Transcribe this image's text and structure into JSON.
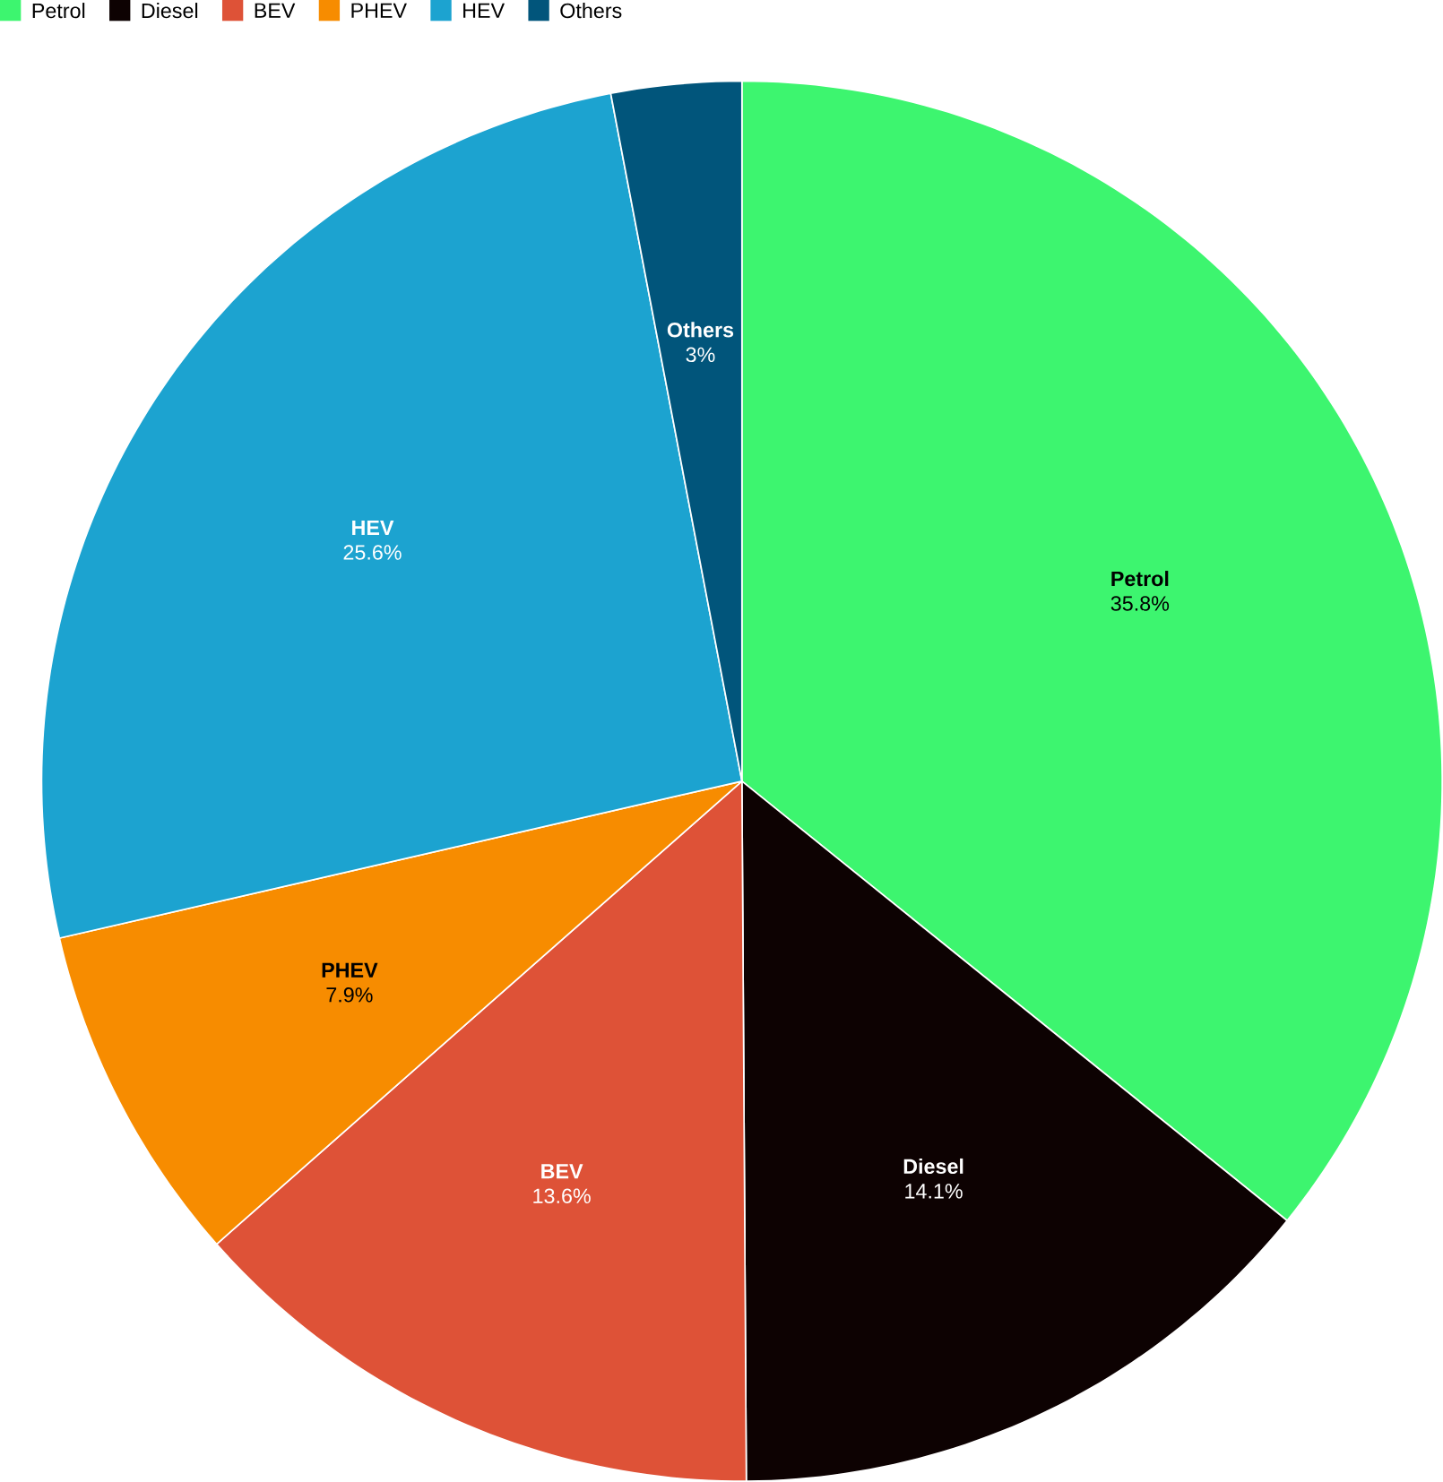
{
  "chart_data": {
    "type": "pie",
    "categories": [
      "Petrol",
      "Diesel",
      "BEV",
      "PHEV",
      "HEV",
      "Others"
    ],
    "values": [
      35.8,
      14.1,
      13.6,
      7.9,
      25.6,
      3
    ],
    "value_labels": [
      "35.8%",
      "14.1%",
      "13.6%",
      "7.9%",
      "25.6%",
      "3%"
    ],
    "colors": [
      "#3df56f",
      "#0d0202",
      "#de5237",
      "#f78c00",
      "#1ca3d0",
      "#01557b"
    ],
    "legend": "top left"
  }
}
